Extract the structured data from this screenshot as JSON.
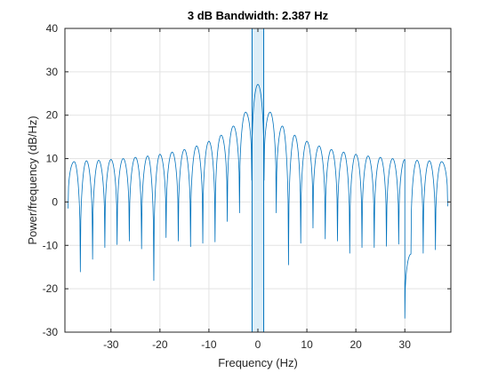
{
  "chart_data": {
    "type": "line",
    "title": "3 dB Bandwidth: 2.387 Hz",
    "xlabel": "Frequency (Hz)",
    "ylabel": "Power/frequency (dB/Hz)",
    "xlim": [
      -39.4,
      39.4
    ],
    "ylim": [
      -30,
      40
    ],
    "xticks": [
      -30,
      -20,
      -10,
      0,
      10,
      20,
      30
    ],
    "yticks": [
      -30,
      -20,
      -10,
      0,
      10,
      20,
      30,
      40
    ],
    "xtick_labels": [
      "-30",
      "-20",
      "-10",
      "0",
      "10",
      "20",
      "30"
    ],
    "ytick_labels": [
      "-30",
      "-20",
      "-10",
      "0",
      "10",
      "20",
      "30",
      "40"
    ],
    "grid": true,
    "series": [
      {
        "peak_frequency": 0,
        "peak_value": 27.1,
        "sidelobe_spacing": 2.5,
        "sidelobes": [
          {
            "x": -37.5,
            "y": 9.3
          },
          {
            "x": -35.0,
            "y": 9.5
          },
          {
            "x": -32.5,
            "y": 9.6
          },
          {
            "x": -30.0,
            "y": 9.8
          },
          {
            "x": -27.5,
            "y": 10.0
          },
          {
            "x": -25.0,
            "y": 10.3
          },
          {
            "x": -22.5,
            "y": 10.6
          },
          {
            "x": -20.0,
            "y": 11.0
          },
          {
            "x": -17.5,
            "y": 11.5
          },
          {
            "x": -15.0,
            "y": 12.1
          },
          {
            "x": -12.5,
            "y": 12.9
          },
          {
            "x": -10.0,
            "y": 14.0
          },
          {
            "x": -7.5,
            "y": 15.4
          },
          {
            "x": -5.0,
            "y": 17.5
          },
          {
            "x": -2.5,
            "y": 20.7
          },
          {
            "x": 2.5,
            "y": 20.7
          },
          {
            "x": 5.0,
            "y": 17.5
          },
          {
            "x": 7.5,
            "y": 15.4
          },
          {
            "x": 10.0,
            "y": 14.0
          },
          {
            "x": 12.5,
            "y": 12.9
          },
          {
            "x": 15.0,
            "y": 12.1
          },
          {
            "x": 17.5,
            "y": 11.5
          },
          {
            "x": 20.0,
            "y": 11.0
          },
          {
            "x": 22.5,
            "y": 10.6
          },
          {
            "x": 25.0,
            "y": 10.3
          },
          {
            "x": 27.5,
            "y": 10.0
          },
          {
            "x": 30.0,
            "y": 9.8
          },
          {
            "x": 32.5,
            "y": 9.6
          },
          {
            "x": 35.0,
            "y": 9.5
          },
          {
            "x": 37.5,
            "y": 9.3
          }
        ],
        "nulls": [
          {
            "x": -38.75,
            "y": -1.5
          },
          {
            "x": -36.25,
            "y": -16.1
          },
          {
            "x": -33.75,
            "y": -13.2
          },
          {
            "x": -31.25,
            "y": -10.5
          },
          {
            "x": -28.75,
            "y": -9.8
          },
          {
            "x": -26.25,
            "y": -9.0
          },
          {
            "x": -23.75,
            "y": -10.8
          },
          {
            "x": -21.25,
            "y": -18.1
          },
          {
            "x": -18.75,
            "y": -8.2
          },
          {
            "x": -16.25,
            "y": -9.0
          },
          {
            "x": -13.75,
            "y": -10.3
          },
          {
            "x": -11.25,
            "y": -9.5
          },
          {
            "x": -8.75,
            "y": -9.2
          },
          {
            "x": -6.25,
            "y": -4.5
          },
          {
            "x": -3.75,
            "y": -2.5
          },
          {
            "x": -1.25,
            "y": 5.0
          },
          {
            "x": 1.25,
            "y": 5.0
          },
          {
            "x": 3.75,
            "y": -2.5
          },
          {
            "x": 6.25,
            "y": -14.5
          },
          {
            "x": 8.75,
            "y": -9.5
          },
          {
            "x": 11.25,
            "y": -6.0
          },
          {
            "x": 13.75,
            "y": -8.5
          },
          {
            "x": 16.25,
            "y": -9.0
          },
          {
            "x": 18.75,
            "y": -11.8
          },
          {
            "x": 21.25,
            "y": -10.5
          },
          {
            "x": 23.75,
            "y": -10.5
          },
          {
            "x": 26.25,
            "y": -10.2
          },
          {
            "x": 28.75,
            "y": -9.7
          },
          {
            "x": 30.0,
            "y": -26.8
          },
          {
            "x": 31.25,
            "y": -12.0
          },
          {
            "x": 33.75,
            "y": -11.8
          },
          {
            "x": 36.25,
            "y": -11.0
          },
          {
            "x": 38.75,
            "y": -1.0
          }
        ]
      }
    ],
    "bandwidth_region": {
      "x_start": -1.19,
      "x_end": 1.19
    },
    "colors": {
      "line": "#0072BD",
      "band_fill": "#D9ECF7",
      "grid": "#E3E3E3",
      "axes": "#262626"
    }
  }
}
